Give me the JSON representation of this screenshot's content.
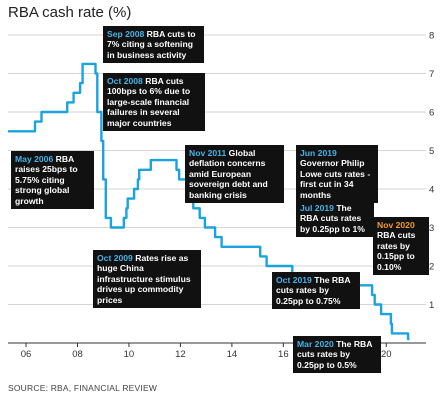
{
  "title": "RBA cash rate (%)",
  "source": "SOURCE: RBA, FINANCIAL REVIEW",
  "colors": {
    "line": "#1aa3e0",
    "box": "#111111",
    "date_blue": "#46b4e8",
    "date_orange": "#f29b2e",
    "grid": "#c9c9c9"
  },
  "annotations": [
    {
      "id": "sep2008",
      "date": "Sep 2008",
      "text": "RBA cuts to 7% citing a softening in business activity"
    },
    {
      "id": "oct2008",
      "date": "Oct 2008",
      "text": "RBA cuts 100bps to 6% due to large-scale financial failures in several major countries"
    },
    {
      "id": "may2006",
      "date": "May 2006",
      "text": "RBA raises 25bps to 5.75% citing strong global growth"
    },
    {
      "id": "nov2011",
      "date": "Nov 2011",
      "text": "Global deflation concerns amid European sovereign debt and banking crisis"
    },
    {
      "id": "jun2019",
      "date": "Jun 2019",
      "text": "Governor Philip Lowe cuts rates - first cut in 34 months"
    },
    {
      "id": "jul2019",
      "date": "Jul 2019",
      "text": "The RBA cuts rates by 0.25pp to 1%"
    },
    {
      "id": "nov2020",
      "date": "Nov 2020",
      "text": "RBA cuts rates by 0.15pp to 0.10%"
    },
    {
      "id": "oct2009",
      "date": "Oct 2009",
      "text": "Rates rise as huge China infrastructure stimulus drives up commodity prices"
    },
    {
      "id": "oct2019",
      "date": "Oct 2019",
      "text": "The RBA cuts rates by 0.25pp to 0.75%"
    },
    {
      "id": "mar2020",
      "date": "Mar 2020",
      "text": "The RBA cuts rates by 0.25pp to 0.5%"
    }
  ],
  "chart_data": {
    "type": "line",
    "title": "RBA cash rate (%)",
    "xlabel": "",
    "ylabel": "",
    "xlim": [
      2005.3,
      2021.0
    ],
    "ylim": [
      0,
      8
    ],
    "x_ticks": [
      {
        "value": 2006,
        "label": "06"
      },
      {
        "value": 2008,
        "label": "08"
      },
      {
        "value": 2010,
        "label": "10"
      },
      {
        "value": 2012,
        "label": "12"
      },
      {
        "value": 2014,
        "label": "14"
      },
      {
        "value": 2016,
        "label": "16"
      },
      {
        "value": 2018,
        "label": "18"
      },
      {
        "value": 2020,
        "label": "20"
      }
    ],
    "y_ticks": [
      1,
      2,
      3,
      4,
      5,
      6,
      7,
      8
    ],
    "grid": "horizontal",
    "y_axis_side": "right",
    "series": [
      {
        "values": [
          [
            2005.3,
            5.5
          ],
          [
            2006.35,
            5.5
          ],
          [
            2006.35,
            5.75
          ],
          [
            2006.6,
            5.75
          ],
          [
            2006.6,
            6.0
          ],
          [
            2007.6,
            6.0
          ],
          [
            2007.6,
            6.25
          ],
          [
            2007.85,
            6.25
          ],
          [
            2007.85,
            6.5
          ],
          [
            2008.1,
            6.5
          ],
          [
            2008.1,
            6.75
          ],
          [
            2008.2,
            6.75
          ],
          [
            2008.2,
            7.0
          ],
          [
            2008.2,
            7.25
          ],
          [
            2008.7,
            7.25
          ],
          [
            2008.7,
            7.0
          ],
          [
            2008.77,
            7.0
          ],
          [
            2008.77,
            6.0
          ],
          [
            2008.93,
            6.0
          ],
          [
            2008.93,
            5.25
          ],
          [
            2009.0,
            5.25
          ],
          [
            2009.0,
            4.25
          ],
          [
            2009.1,
            4.25
          ],
          [
            2009.1,
            3.25
          ],
          [
            2009.3,
            3.25
          ],
          [
            2009.3,
            3.0
          ],
          [
            2009.8,
            3.0
          ],
          [
            2009.8,
            3.25
          ],
          [
            2009.9,
            3.25
          ],
          [
            2009.9,
            3.5
          ],
          [
            2009.95,
            3.5
          ],
          [
            2009.95,
            3.75
          ],
          [
            2010.2,
            3.75
          ],
          [
            2010.2,
            4.0
          ],
          [
            2010.35,
            4.0
          ],
          [
            2010.35,
            4.25
          ],
          [
            2010.4,
            4.25
          ],
          [
            2010.4,
            4.5
          ],
          [
            2010.85,
            4.5
          ],
          [
            2010.85,
            4.75
          ],
          [
            2011.85,
            4.75
          ],
          [
            2011.85,
            4.5
          ],
          [
            2011.95,
            4.5
          ],
          [
            2011.95,
            4.25
          ],
          [
            2012.4,
            4.25
          ],
          [
            2012.4,
            3.75
          ],
          [
            2012.5,
            3.75
          ],
          [
            2012.5,
            3.5
          ],
          [
            2012.75,
            3.5
          ],
          [
            2012.75,
            3.25
          ],
          [
            2012.95,
            3.25
          ],
          [
            2012.95,
            3.0
          ],
          [
            2013.35,
            3.0
          ],
          [
            2013.35,
            2.75
          ],
          [
            2013.6,
            2.75
          ],
          [
            2013.6,
            2.5
          ],
          [
            2015.1,
            2.5
          ],
          [
            2015.1,
            2.25
          ],
          [
            2015.35,
            2.25
          ],
          [
            2015.35,
            2.0
          ],
          [
            2016.35,
            2.0
          ],
          [
            2016.35,
            1.75
          ],
          [
            2016.6,
            1.75
          ],
          [
            2016.6,
            1.5
          ],
          [
            2019.45,
            1.5
          ],
          [
            2019.45,
            1.25
          ],
          [
            2019.55,
            1.25
          ],
          [
            2019.55,
            1.0
          ],
          [
            2019.8,
            1.0
          ],
          [
            2019.8,
            0.75
          ],
          [
            2020.18,
            0.75
          ],
          [
            2020.18,
            0.5
          ],
          [
            2020.22,
            0.5
          ],
          [
            2020.22,
            0.25
          ],
          [
            2020.85,
            0.25
          ],
          [
            2020.85,
            0.1
          ],
          [
            2020.9,
            0.1
          ]
        ]
      }
    ]
  }
}
